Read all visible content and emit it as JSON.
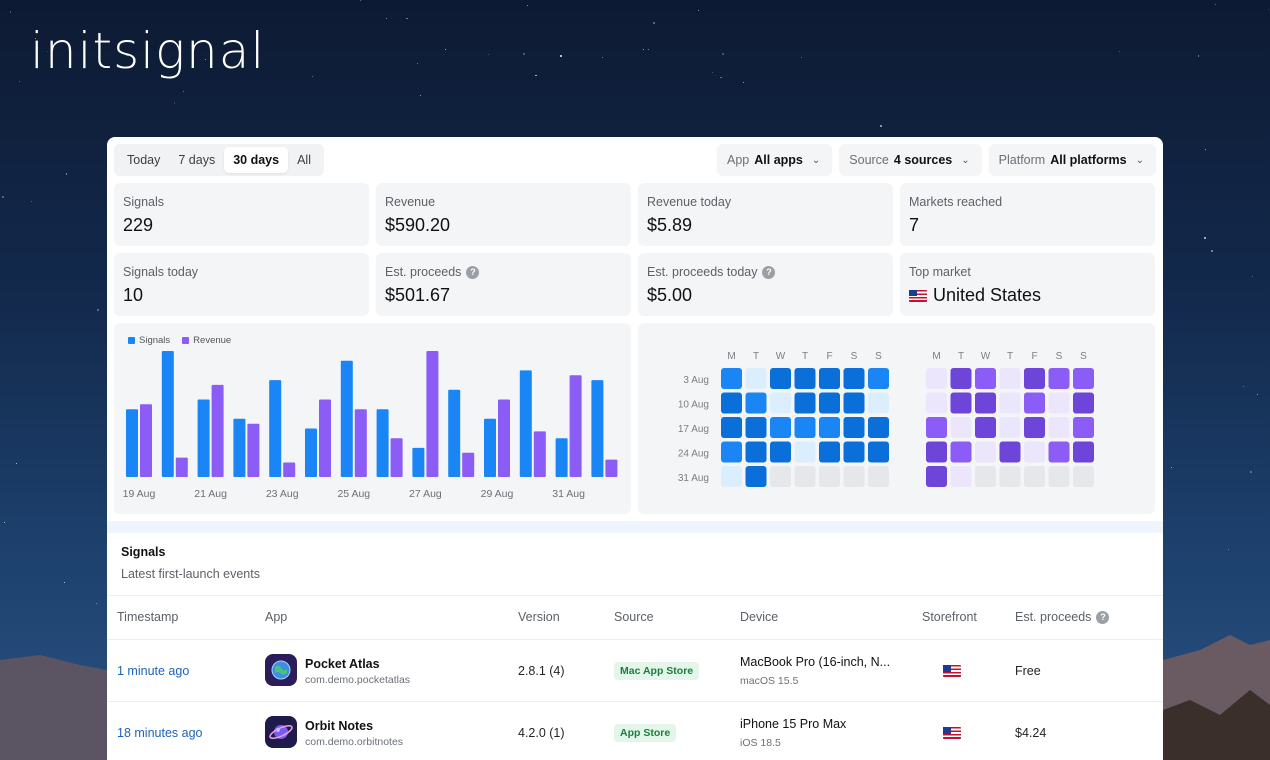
{
  "brand": "initsignal",
  "toolbar": {
    "ranges": [
      "Today",
      "7 days",
      "30 days",
      "All"
    ],
    "active_range": "30 days",
    "filters": [
      {
        "label": "App",
        "value": "All apps"
      },
      {
        "label": "Source",
        "value": "4 sources"
      },
      {
        "label": "Platform",
        "value": "All platforms"
      }
    ]
  },
  "stats": [
    {
      "label": "Signals",
      "value": "229"
    },
    {
      "label": "Revenue",
      "value": "$590.20"
    },
    {
      "label": "Revenue today",
      "value": "$5.89"
    },
    {
      "label": "Markets reached",
      "value": "7"
    },
    {
      "label": "Signals today",
      "value": "10"
    },
    {
      "label": "Est. proceeds",
      "value": "$501.67",
      "help": "?"
    },
    {
      "label": "Est. proceeds today",
      "value": "$5.00",
      "help": "?"
    },
    {
      "label": "Top market",
      "value": "United States",
      "flag": "us-flag-icon"
    }
  ],
  "chart_data": {
    "type": "bar",
    "legend": "top-left",
    "series": [
      {
        "name": "Signals",
        "color": "#1a86f5",
        "values": [
          7,
          13,
          8,
          6,
          10,
          5,
          12,
          7,
          3,
          9,
          6,
          11,
          4,
          10
        ]
      },
      {
        "name": "Revenue",
        "color": "#8b5cf6",
        "values": [
          7.5,
          2,
          9.5,
          5.5,
          1.5,
          8,
          7,
          4,
          13,
          2.5,
          8,
          4.7,
          10.5,
          1.8
        ]
      }
    ],
    "tick_labels": [
      "19 Aug",
      "21 Aug",
      "23 Aug",
      "25 Aug",
      "27 Aug",
      "29 Aug",
      "31 Aug"
    ],
    "ylim": [
      0,
      13
    ]
  },
  "heatmap": {
    "days": [
      "M",
      "T",
      "W",
      "T",
      "F",
      "S",
      "S"
    ],
    "weeks": [
      "3 Aug",
      "10 Aug",
      "17 Aug",
      "24 Aug",
      "31 Aug"
    ],
    "signals_levels": [
      [
        2,
        0,
        3,
        3,
        3,
        3,
        2
      ],
      [
        3,
        2,
        0,
        3,
        3,
        3,
        0
      ],
      [
        3,
        3,
        2,
        2,
        2,
        3,
        3
      ],
      [
        2,
        3,
        3,
        0,
        3,
        3,
        3
      ],
      [
        0,
        3,
        -1,
        -1,
        -1,
        -1,
        -1
      ]
    ],
    "revenue_levels": [
      [
        0,
        3,
        2,
        0,
        3,
        2,
        2
      ],
      [
        0,
        3,
        3,
        0,
        2,
        0,
        3
      ],
      [
        2,
        0,
        3,
        0,
        3,
        0,
        2
      ],
      [
        3,
        2,
        0,
        3,
        0,
        2,
        3
      ],
      [
        3,
        0,
        -1,
        -1,
        -1,
        -1,
        -1
      ]
    ],
    "signals_colors": [
      "#dbeefd",
      "#8cc5fa",
      "#1a86f5",
      "#0a6fd8"
    ],
    "revenue_colors": [
      "#ebe6fb",
      "#b9a4f5",
      "#8b5cf6",
      "#6d45d9"
    ],
    "empty_color": "#e6e7ea"
  },
  "signals_section": {
    "title": "Signals",
    "subtitle": "Latest first-launch events",
    "columns": [
      "Timestamp",
      "App",
      "Version",
      "Source",
      "Device",
      "Storefront",
      "Est. proceeds"
    ],
    "rows": [
      {
        "timestamp": "1 minute ago",
        "app_name": "Pocket Atlas",
        "app_bundle": "com.demo.pocketatlas",
        "app_icon": "globe-icon",
        "version": "2.8.1 (4)",
        "source": "Mac App Store",
        "device": "MacBook Pro (16-inch, N...",
        "os": "macOS 15.5",
        "storefront": "us-flag-icon",
        "proceeds": "Free"
      },
      {
        "timestamp": "18 minutes ago",
        "app_name": "Orbit Notes",
        "app_bundle": "com.demo.orbitnotes",
        "app_icon": "planet-icon",
        "version": "4.2.0 (1)",
        "source": "App Store",
        "device": "iPhone 15 Pro Max",
        "os": "iOS 18.5",
        "storefront": "us-flag-icon",
        "proceeds": "$4.24"
      }
    ]
  }
}
